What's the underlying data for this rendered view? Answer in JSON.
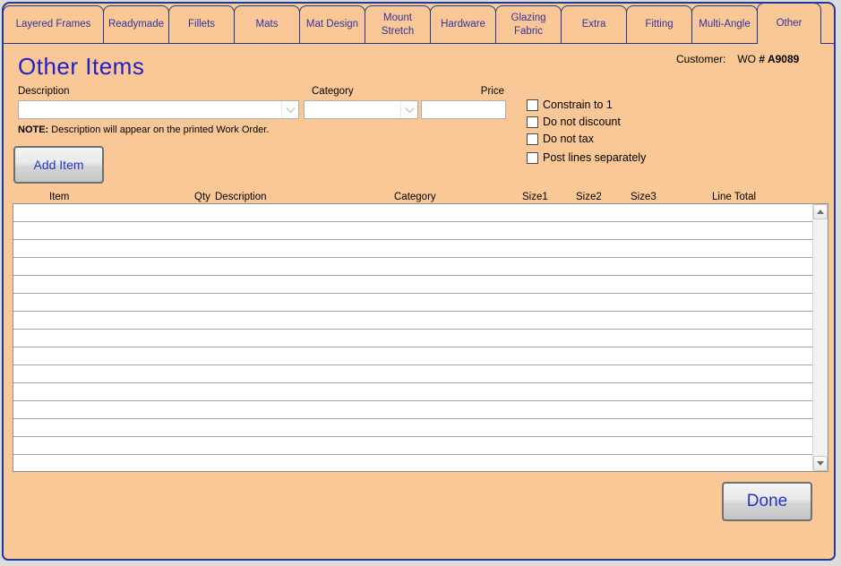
{
  "tabs": [
    {
      "label": "Layered Frames",
      "active": false
    },
    {
      "label": "Readymade",
      "active": false
    },
    {
      "label": "Fillets",
      "active": false
    },
    {
      "label": "Mats",
      "active": false
    },
    {
      "label": "Mat Design",
      "active": false
    },
    {
      "label": "Mount Stretch",
      "active": false
    },
    {
      "label": "Hardware",
      "active": false
    },
    {
      "label": "Glazing Fabric",
      "active": false
    },
    {
      "label": "Extra",
      "active": false
    },
    {
      "label": "Fitting",
      "active": false
    },
    {
      "label": "Multi-Angle",
      "active": false
    },
    {
      "label": "Other",
      "active": true
    }
  ],
  "header": {
    "title": "Other Items",
    "customer_label": "Customer:",
    "work_order_prefix": "WO",
    "work_order_number": "# A9089"
  },
  "form": {
    "description_label": "Description",
    "description_value": "",
    "category_label": "Category",
    "category_value": "",
    "price_label": "Price",
    "price_value": "",
    "note_prefix": "NOTE:",
    "note_text": " Description will appear on the printed Work Order.",
    "checkboxes": [
      {
        "label": "Constrain to 1",
        "checked": false
      },
      {
        "label": "Do not discount",
        "checked": false
      },
      {
        "label": "Do not tax",
        "checked": false
      },
      {
        "label": "Post lines separately",
        "checked": false
      }
    ],
    "add_item_label": "Add Item"
  },
  "items_table": {
    "columns": [
      "Item",
      "Qty",
      "Description",
      "Category",
      "Size1",
      "Size2",
      "Size3",
      "Line Total"
    ],
    "rows": []
  },
  "footer": {
    "done_label": "Done"
  },
  "colors": {
    "background": "#FAC896",
    "window_border": "#1E3A9A",
    "tab_text": "#32329F",
    "title_text": "#2121CB",
    "button_text": "#2233CC"
  }
}
